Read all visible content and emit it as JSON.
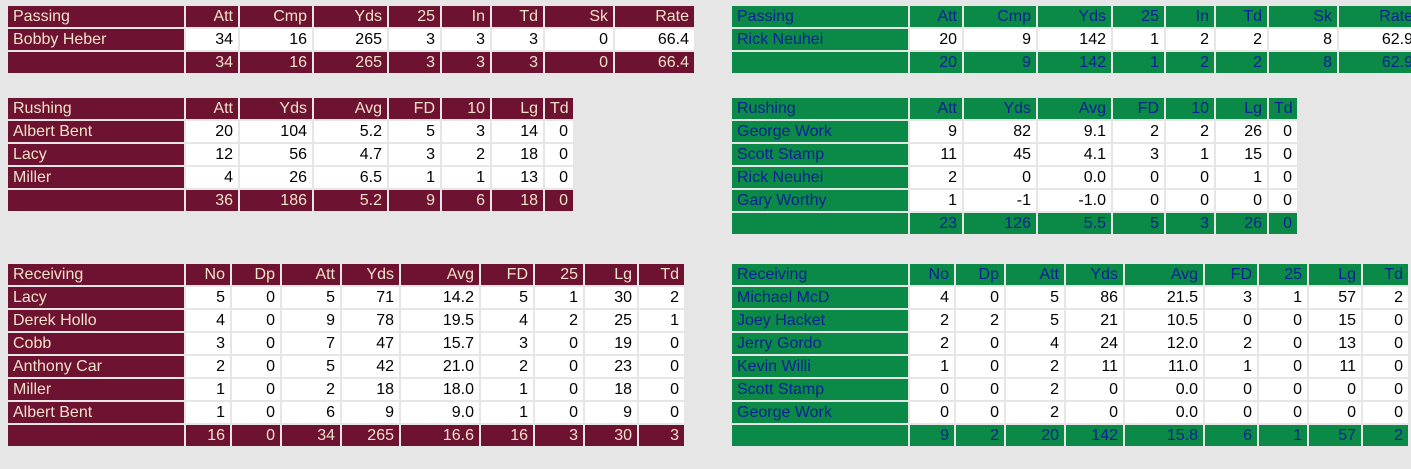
{
  "home": {
    "passing": {
      "headers": [
        "Passing",
        "Att",
        "Cmp",
        "Yds",
        "25",
        "In",
        "Td",
        "Sk",
        "Rate"
      ],
      "rows": [
        [
          "Bobby Heber",
          "34",
          "16",
          "265",
          "3",
          "3",
          "3",
          "0",
          "66.4"
        ]
      ],
      "totals": [
        "",
        "34",
        "16",
        "265",
        "3",
        "3",
        "3",
        "0",
        "66.4"
      ]
    },
    "rushing": {
      "headers": [
        "Rushing",
        "Att",
        "Yds",
        "Avg",
        "FD",
        "10",
        "Lg",
        "Td"
      ],
      "rows": [
        [
          "Albert Bent",
          "20",
          "104",
          "5.2",
          "5",
          "3",
          "14",
          "0"
        ],
        [
          "Lacy",
          "12",
          "56",
          "4.7",
          "3",
          "2",
          "18",
          "0"
        ],
        [
          "Miller",
          "4",
          "26",
          "6.5",
          "1",
          "1",
          "13",
          "0"
        ]
      ],
      "totals": [
        "",
        "36",
        "186",
        "5.2",
        "9",
        "6",
        "18",
        "0"
      ]
    },
    "receiving": {
      "headers": [
        "Receiving",
        "No",
        "Dp",
        "Att",
        "Yds",
        "Avg",
        "FD",
        "25",
        "Lg",
        "Td"
      ],
      "rows": [
        [
          "Lacy",
          "5",
          "0",
          "5",
          "71",
          "14.2",
          "5",
          "1",
          "30",
          "2"
        ],
        [
          "Derek Hollo",
          "4",
          "0",
          "9",
          "78",
          "19.5",
          "4",
          "2",
          "25",
          "1"
        ],
        [
          "Cobb",
          "3",
          "0",
          "7",
          "47",
          "15.7",
          "3",
          "0",
          "19",
          "0"
        ],
        [
          "Anthony Car",
          "2",
          "0",
          "5",
          "42",
          "21.0",
          "2",
          "0",
          "23",
          "0"
        ],
        [
          "Miller",
          "1",
          "0",
          "2",
          "18",
          "18.0",
          "1",
          "0",
          "18",
          "0"
        ],
        [
          "Albert Bent",
          "1",
          "0",
          "6",
          "9",
          "9.0",
          "1",
          "0",
          "9",
          "0"
        ]
      ],
      "totals": [
        "",
        "16",
        "0",
        "34",
        "265",
        "16.6",
        "16",
        "3",
        "30",
        "3"
      ]
    }
  },
  "away": {
    "passing": {
      "headers": [
        "Passing",
        "Att",
        "Cmp",
        "Yds",
        "25",
        "In",
        "Td",
        "Sk",
        "Rate"
      ],
      "rows": [
        [
          "Rick Neuhei",
          "20",
          "9",
          "142",
          "1",
          "2",
          "2",
          "8",
          "62.9"
        ]
      ],
      "totals": [
        "",
        "20",
        "9",
        "142",
        "1",
        "2",
        "2",
        "8",
        "62.9"
      ]
    },
    "rushing": {
      "headers": [
        "Rushing",
        "Att",
        "Yds",
        "Avg",
        "FD",
        "10",
        "Lg",
        "Td"
      ],
      "rows": [
        [
          "George Work",
          "9",
          "82",
          "9.1",
          "2",
          "2",
          "26",
          "0"
        ],
        [
          "Scott Stamp",
          "11",
          "45",
          "4.1",
          "3",
          "1",
          "15",
          "0"
        ],
        [
          "Rick Neuhei",
          "2",
          "0",
          "0.0",
          "0",
          "0",
          "1",
          "0"
        ],
        [
          "Gary Worthy",
          "1",
          "-1",
          "-1.0",
          "0",
          "0",
          "0",
          "0"
        ]
      ],
      "totals": [
        "",
        "23",
        "126",
        "5.5",
        "5",
        "3",
        "26",
        "0"
      ]
    },
    "receiving": {
      "headers": [
        "Receiving",
        "No",
        "Dp",
        "Att",
        "Yds",
        "Avg",
        "FD",
        "25",
        "Lg",
        "Td"
      ],
      "rows": [
        [
          "Michael McD",
          "4",
          "0",
          "5",
          "86",
          "21.5",
          "3",
          "1",
          "57",
          "2"
        ],
        [
          "Joey Hacket",
          "2",
          "2",
          "5",
          "21",
          "10.5",
          "0",
          "0",
          "15",
          "0"
        ],
        [
          "Jerry Gordo",
          "2",
          "0",
          "4",
          "24",
          "12.0",
          "2",
          "0",
          "13",
          "0"
        ],
        [
          "Kevin Willi",
          "1",
          "0",
          "2",
          "11",
          "11.0",
          "1",
          "0",
          "11",
          "0"
        ],
        [
          "Scott Stamp",
          "0",
          "0",
          "2",
          "0",
          "0.0",
          "0",
          "0",
          "0",
          "0"
        ],
        [
          "George Work",
          "0",
          "0",
          "2",
          "0",
          "0.0",
          "0",
          "0",
          "0",
          "0"
        ]
      ],
      "totals": [
        "",
        "9",
        "2",
        "20",
        "142",
        "15.8",
        "6",
        "1",
        "57",
        "2"
      ]
    }
  },
  "colors": {
    "home_bg": "#6e1231",
    "home_text": "#f0e2c8",
    "away_bg": "#0a8a46",
    "away_text": "#0c1f99"
  }
}
